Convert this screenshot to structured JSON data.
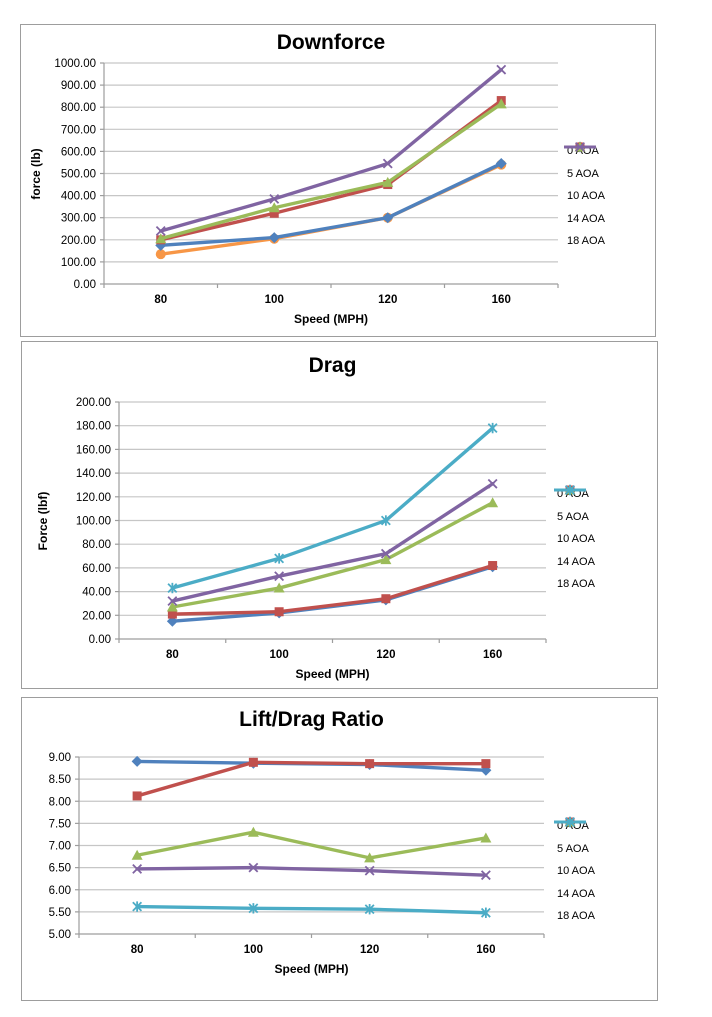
{
  "chart_data": [
    {
      "type": "line",
      "title": "Downforce",
      "xlabel": "Speed (MPH)",
      "ylabel": "force (lb)",
      "categories": [
        "80",
        "100",
        "120",
        "160"
      ],
      "y_axis": {
        "min": 0,
        "max": 1000,
        "step": 100,
        "decimals": 2
      },
      "grid": true,
      "legend_position": "right",
      "series": [
        {
          "name": "0 AOA",
          "color": "#F79646",
          "marker": "circle",
          "values": [
            135,
            205,
            300,
            540
          ]
        },
        {
          "name": "5 AOA",
          "color": "#4F81BD",
          "marker": "diamond",
          "values": [
            175,
            210,
            300,
            545
          ]
        },
        {
          "name": "10 AOA",
          "color": "#C0504D",
          "marker": "square",
          "values": [
            200,
            320,
            450,
            830
          ]
        },
        {
          "name": "14 AOA",
          "color": "#9BBB59",
          "marker": "triangle",
          "values": [
            205,
            345,
            460,
            815
          ]
        },
        {
          "name": "18 AOA",
          "color": "#8064A2",
          "marker": "x",
          "values": [
            240,
            385,
            545,
            970
          ]
        }
      ]
    },
    {
      "type": "line",
      "title": "Drag",
      "xlabel": "Speed (MPH)",
      "ylabel": "Force (lbf)",
      "categories": [
        "80",
        "100",
        "120",
        "160"
      ],
      "y_axis": {
        "min": 0,
        "max": 200,
        "step": 20,
        "decimals": 2
      },
      "grid": true,
      "legend_position": "right",
      "series": [
        {
          "name": "0 AOA",
          "color": "#4F81BD",
          "marker": "diamond",
          "values": [
            15,
            22,
            33,
            61
          ]
        },
        {
          "name": "5 AOA",
          "color": "#C0504D",
          "marker": "square",
          "values": [
            21,
            23,
            34,
            62
          ]
        },
        {
          "name": "10 AOA",
          "color": "#9BBB59",
          "marker": "triangle",
          "values": [
            27,
            43,
            67,
            115
          ]
        },
        {
          "name": "14 AOA",
          "color": "#8064A2",
          "marker": "x",
          "values": [
            32,
            53,
            72,
            131
          ]
        },
        {
          "name": "18 AOA",
          "color": "#4BACC6",
          "marker": "asterisk",
          "values": [
            43,
            68,
            100,
            178
          ]
        }
      ]
    },
    {
      "type": "line",
      "title": "Lift/Drag Ratio",
      "xlabel": "Speed (MPH)",
      "ylabel": "",
      "categories": [
        "80",
        "100",
        "120",
        "160"
      ],
      "y_axis": {
        "min": 5,
        "max": 9,
        "step": 0.5,
        "decimals": 2
      },
      "grid": true,
      "legend_position": "right",
      "series": [
        {
          "name": "0 AOA",
          "color": "#4F81BD",
          "marker": "diamond",
          "values": [
            8.9,
            8.86,
            8.83,
            8.7
          ]
        },
        {
          "name": "5 AOA",
          "color": "#C0504D",
          "marker": "square",
          "values": [
            8.12,
            8.88,
            8.85,
            8.85
          ]
        },
        {
          "name": "10 AOA",
          "color": "#9BBB59",
          "marker": "triangle",
          "values": [
            6.78,
            7.3,
            6.72,
            7.17
          ]
        },
        {
          "name": "14 AOA",
          "color": "#8064A2",
          "marker": "x",
          "values": [
            6.47,
            6.5,
            6.43,
            6.33
          ]
        },
        {
          "name": "18 AOA",
          "color": "#4BACC6",
          "marker": "asterisk",
          "values": [
            5.62,
            5.58,
            5.56,
            5.48
          ]
        }
      ]
    }
  ],
  "style": {
    "grid_color": "#c6c6c6",
    "axis_color": "#9d9d9d",
    "text_color": "#000000"
  }
}
